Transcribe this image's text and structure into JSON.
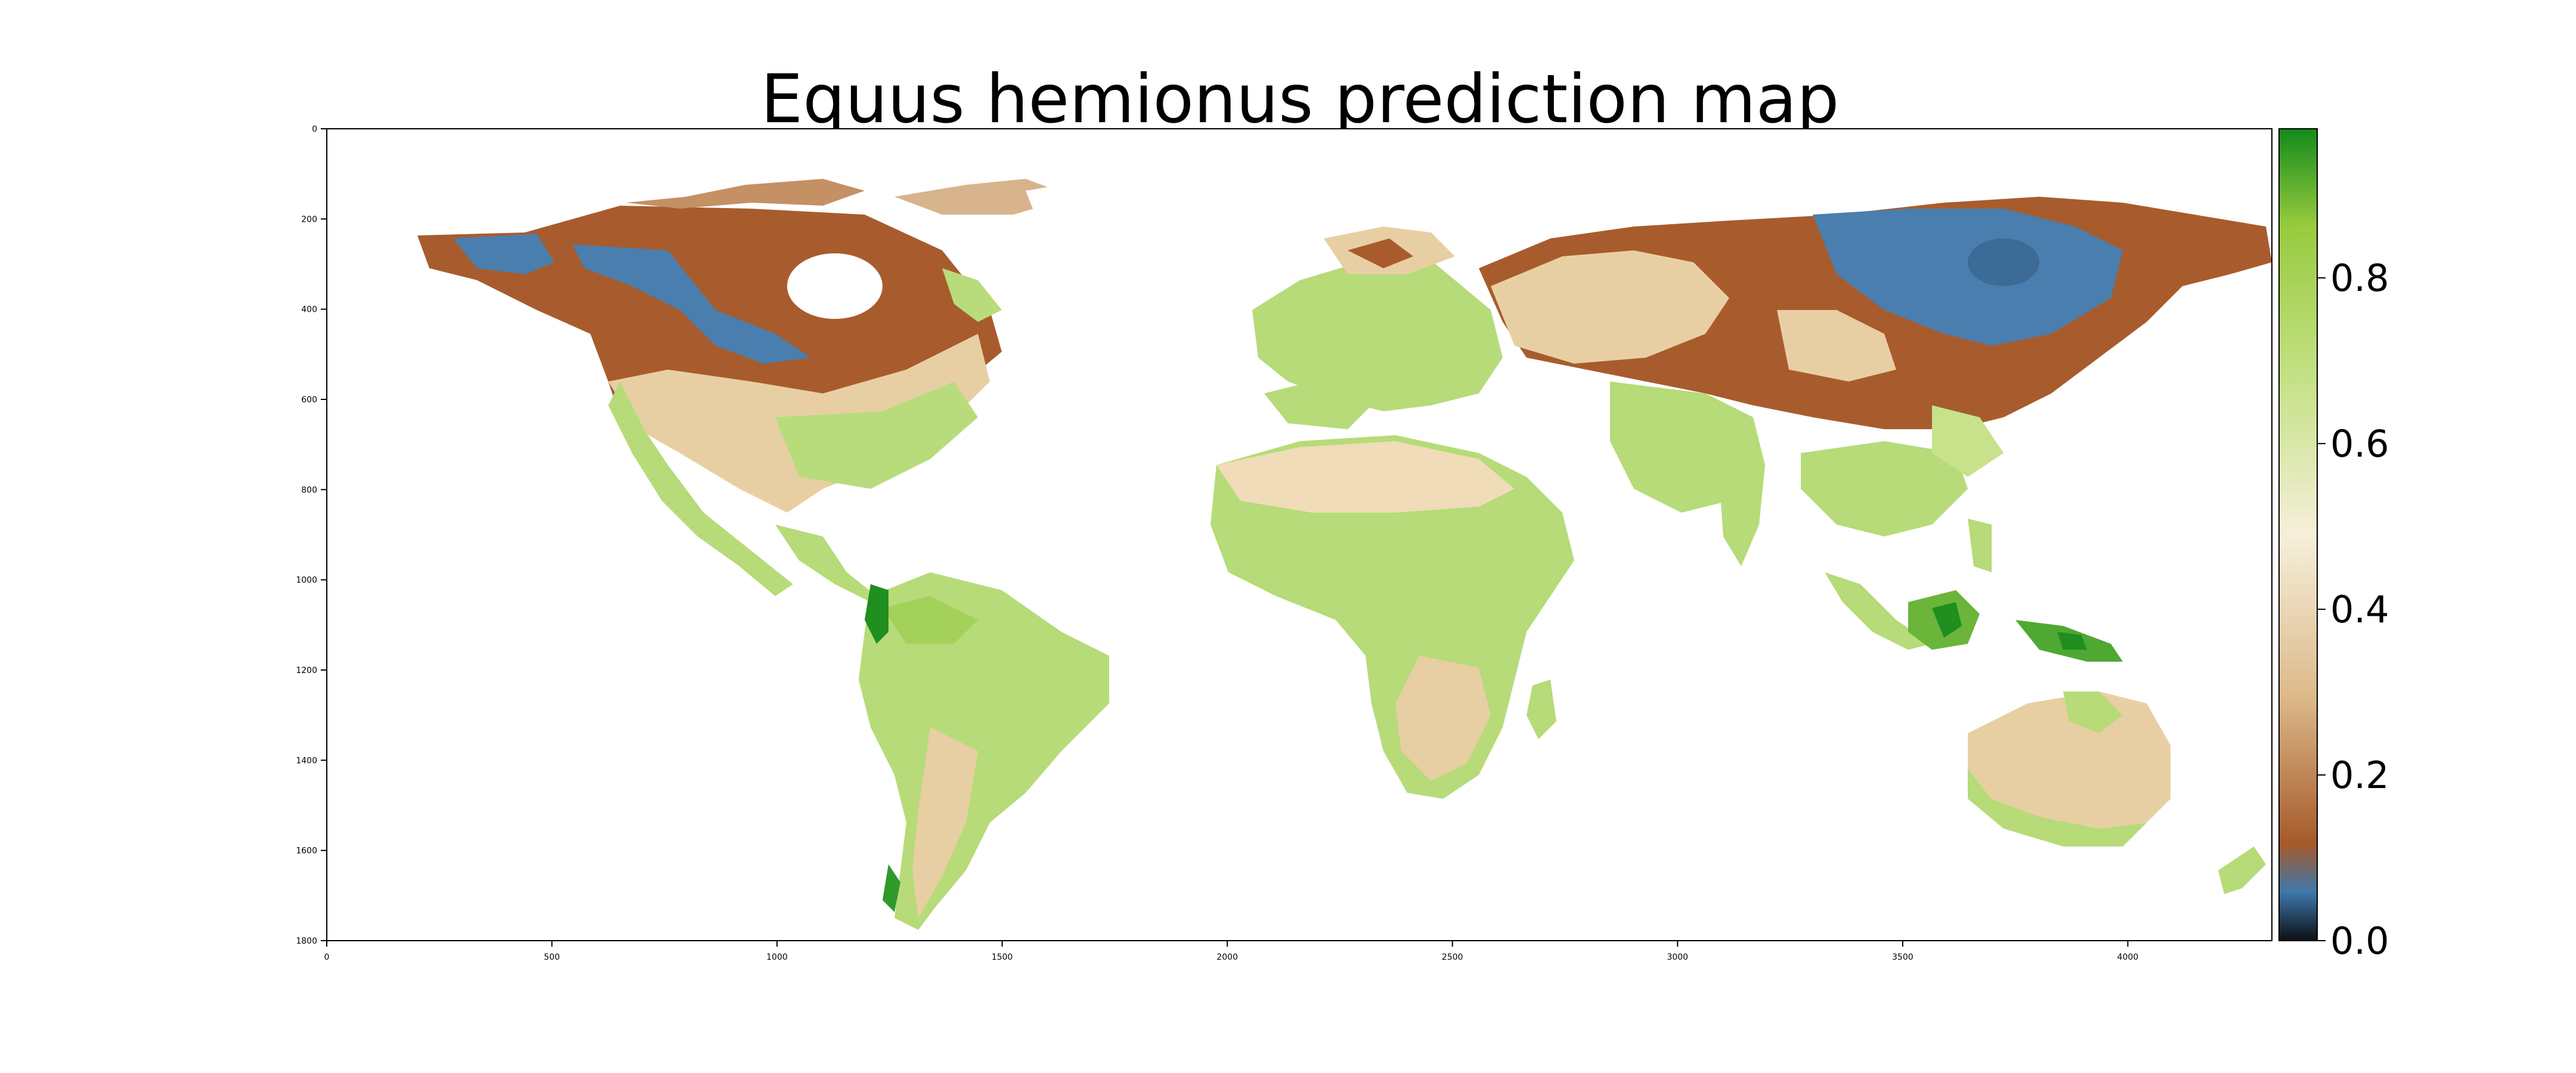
{
  "title": "Equus hemionus prediction map",
  "map": {
    "x_ticks": [
      0,
      500,
      1000,
      1500,
      2000,
      2500,
      3000,
      3500,
      4000
    ],
    "y_ticks": [
      0,
      200,
      400,
      600,
      800,
      1000,
      1200,
      1400,
      1600,
      1800
    ],
    "xlim": [
      0,
      4320
    ],
    "ylim": [
      0,
      1800
    ],
    "y_inverted": true
  },
  "colorbar": {
    "ticks": [
      "0.0",
      "0.2",
      "0.4",
      "0.6",
      "0.8"
    ],
    "range": [
      0.0,
      0.98
    ],
    "colormap": "black-blue-brown-cream-green",
    "stops": [
      "#0b0f14",
      "#3f78ab",
      "#a65a2a",
      "#dcb98a",
      "#f6efda",
      "#c7e28b",
      "#98cb3e",
      "#138a1b"
    ]
  },
  "colors": {
    "ocean": "#ffffff",
    "low": "#a85c2d",
    "very_low": "#4a7eae",
    "mid": "#f2dfbf",
    "high": "#b6db78",
    "very_high": "#1f8f1f"
  }
}
